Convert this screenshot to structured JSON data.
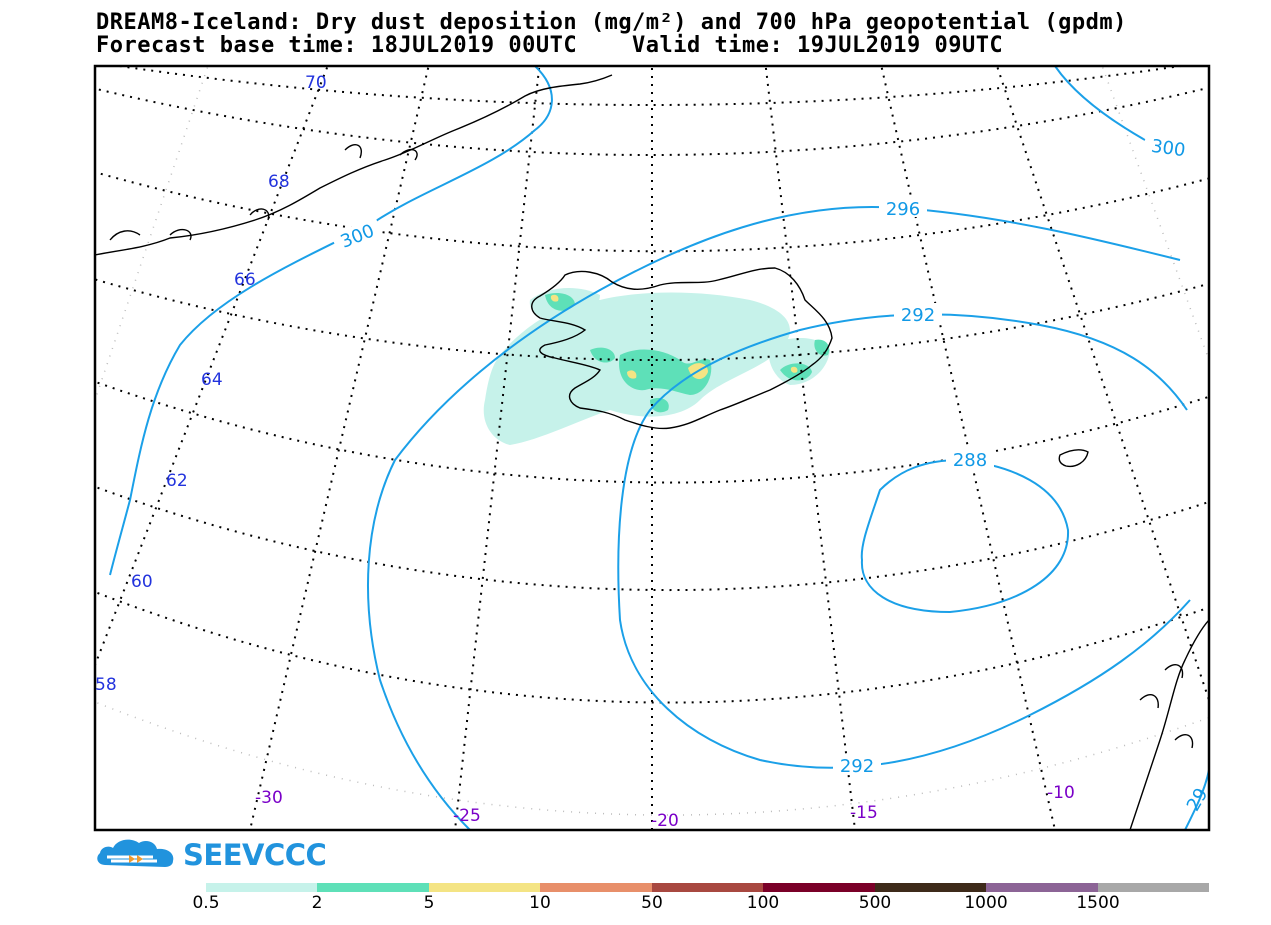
{
  "title": {
    "line1": "DREAM8-Iceland: Dry dust deposition (mg/m²) and 700 hPa geopotential (gpdm)",
    "line2": "Forecast base time: 18JUL2019 00UTC    Valid time: 19JUL2019 09UTC"
  },
  "map": {
    "latitude_labels": [
      "70",
      "68",
      "66",
      "64",
      "62",
      "60",
      "58"
    ],
    "longitude_labels": [
      "-30",
      "-25",
      "-20",
      "-15",
      "-10"
    ],
    "contour_labels": [
      "300",
      "300",
      "296",
      "292",
      "288",
      "292",
      "29"
    ],
    "contour_color": "#1ba0e8",
    "coastline_color": "#000000"
  },
  "logo": {
    "text": "SEEVCCC",
    "color": "#2193dd",
    "accent": "#f29a2e"
  },
  "legend": {
    "colors": [
      "#c6f2ea",
      "#5ee0b8",
      "#f4e484",
      "#e88f6a",
      "#a84840",
      "#7a0028",
      "#3e2a1a",
      "#8c6496",
      "#a8a8a8"
    ],
    "ticks": [
      "0.5",
      "2",
      "5",
      "10",
      "50",
      "100",
      "500",
      "1000",
      "1500"
    ]
  }
}
